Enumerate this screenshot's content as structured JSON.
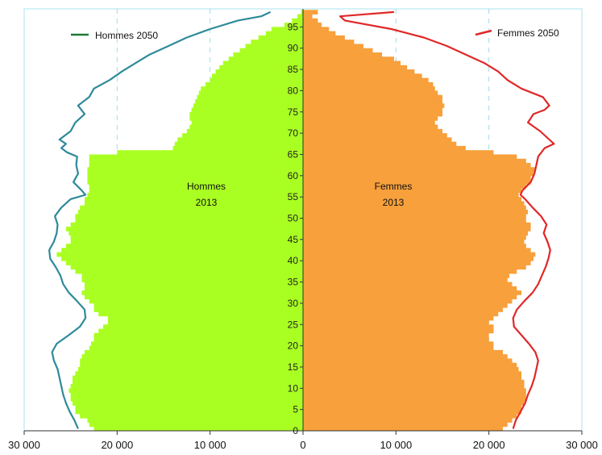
{
  "chart_data": {
    "type": "bar",
    "title": "",
    "orientation": "horizontal-pyramid",
    "xlabel": "",
    "ylabel": "",
    "xlim": [
      -30000,
      30000
    ],
    "ylim": [
      0,
      99
    ],
    "x_ticks": [
      {
        "value": -30000,
        "label": "30 000"
      },
      {
        "value": -20000,
        "label": "20 000"
      },
      {
        "value": -10000,
        "label": "10 000"
      },
      {
        "value": 0,
        "label": "0"
      },
      {
        "value": 10000,
        "label": "10 000"
      },
      {
        "value": 20000,
        "label": "20 000"
      },
      {
        "value": 30000,
        "label": "30 000"
      }
    ],
    "age_ticks": [
      "0",
      "5",
      "10",
      "15",
      "20",
      "25",
      "30",
      "35",
      "40",
      "45",
      "50",
      "55",
      "60",
      "65",
      "70",
      "75",
      "80",
      "85",
      "90",
      "95"
    ],
    "grid": true,
    "legend_position": "top",
    "colors": {
      "men_2013": "#AAFF22",
      "women_2013": "#F7A03C",
      "men_2050": "#2E8A9A",
      "women_2050": "#E02828",
      "men_2050_legend": "#1E7A3A",
      "grid": "#9FDCEA",
      "axis": "#333333",
      "frame": "#A8E4F0"
    },
    "series": [
      {
        "name": "Hommes 2013",
        "label_lines": [
          "Hommes",
          "2013"
        ],
        "side": "left",
        "kind": "bars",
        "color_key": "men_2013",
        "ages": [
          0,
          1,
          2,
          3,
          4,
          5,
          6,
          7,
          8,
          9,
          10,
          11,
          12,
          13,
          14,
          15,
          16,
          17,
          18,
          19,
          20,
          21,
          22,
          23,
          24,
          25,
          26,
          27,
          28,
          29,
          30,
          31,
          32,
          33,
          34,
          35,
          36,
          37,
          38,
          39,
          40,
          41,
          42,
          43,
          44,
          45,
          46,
          47,
          48,
          49,
          50,
          51,
          52,
          53,
          54,
          55,
          56,
          57,
          58,
          59,
          60,
          61,
          62,
          63,
          64,
          65,
          66,
          67,
          68,
          69,
          70,
          71,
          72,
          73,
          74,
          75,
          76,
          77,
          78,
          79,
          80,
          81,
          82,
          83,
          84,
          85,
          86,
          87,
          88,
          89,
          90,
          91,
          92,
          93,
          94,
          95,
          96,
          97,
          98
        ],
        "values": [
          22500,
          23000,
          23200,
          24000,
          24500,
          24500,
          24800,
          25000,
          25000,
          25200,
          25000,
          24800,
          24800,
          24500,
          24200,
          24000,
          24000,
          23800,
          23500,
          23000,
          22800,
          22500,
          22500,
          22000,
          21500,
          21000,
          21000,
          22000,
          22500,
          22500,
          23000,
          23500,
          23800,
          23500,
          23500,
          23800,
          23800,
          24500,
          25000,
          25500,
          26000,
          26500,
          26000,
          25500,
          25000,
          25000,
          25200,
          25500,
          25000,
          24500,
          24500,
          24200,
          24000,
          23500,
          23500,
          23200,
          23000,
          23000,
          23200,
          23200,
          23200,
          23200,
          23000,
          23000,
          23000,
          20000,
          14000,
          13800,
          13500,
          13000,
          12500,
          12200,
          12000,
          12200,
          12200,
          12000,
          11800,
          11600,
          11400,
          11200,
          11000,
          10500,
          10000,
          9800,
          9400,
          9000,
          8600,
          8000,
          7500,
          6800,
          6200,
          5600,
          4800,
          4000,
          3400,
          2000,
          1200,
          600,
          200
        ]
      },
      {
        "name": "Femmes 2013",
        "label_lines": [
          "Femmes",
          "2013"
        ],
        "side": "right",
        "kind": "bars",
        "color_key": "women_2013",
        "ages": [
          0,
          1,
          2,
          3,
          4,
          5,
          6,
          7,
          8,
          9,
          10,
          11,
          12,
          13,
          14,
          15,
          16,
          17,
          18,
          19,
          20,
          21,
          22,
          23,
          24,
          25,
          26,
          27,
          28,
          29,
          30,
          31,
          32,
          33,
          34,
          35,
          36,
          37,
          38,
          39,
          40,
          41,
          42,
          43,
          44,
          45,
          46,
          47,
          48,
          49,
          50,
          51,
          52,
          53,
          54,
          55,
          56,
          57,
          58,
          59,
          60,
          61,
          62,
          63,
          64,
          65,
          66,
          67,
          68,
          69,
          70,
          71,
          72,
          73,
          74,
          75,
          76,
          77,
          78,
          79,
          80,
          81,
          82,
          83,
          84,
          85,
          86,
          87,
          88,
          89,
          90,
          91,
          92,
          93,
          94,
          95,
          96,
          97,
          98
        ],
        "values": [
          21500,
          22000,
          22500,
          23000,
          23500,
          23500,
          23800,
          24000,
          24000,
          24000,
          23800,
          23800,
          23500,
          23500,
          23200,
          23000,
          22500,
          22000,
          21500,
          20500,
          20500,
          20000,
          20000,
          20500,
          20500,
          20000,
          20500,
          21000,
          21500,
          22000,
          22500,
          23000,
          23500,
          23000,
          22500,
          22000,
          22200,
          23000,
          24000,
          24500,
          24800,
          25000,
          24500,
          24000,
          23800,
          24000,
          24200,
          24500,
          24500,
          24000,
          24000,
          24200,
          24000,
          23800,
          23500,
          23200,
          23500,
          24000,
          24500,
          24500,
          24800,
          25000,
          24500,
          24000,
          23000,
          20500,
          17500,
          16500,
          16000,
          15500,
          15000,
          14500,
          14200,
          14500,
          15000,
          15000,
          15200,
          15000,
          15000,
          14500,
          14200,
          14000,
          13500,
          12800,
          12000,
          11200,
          10500,
          9800,
          8500,
          7500,
          6500,
          5500,
          4500,
          3500,
          2800,
          2000,
          1600,
          1000,
          1600
        ]
      },
      {
        "name": "Hommes 2050",
        "side": "left",
        "kind": "line",
        "color_key": "men_2050",
        "ages": [
          0,
          2,
          4,
          6,
          8,
          10,
          12,
          14,
          16,
          18,
          20,
          22,
          24,
          26,
          28,
          30,
          32,
          34,
          36,
          38,
          40,
          42,
          44,
          46,
          48,
          50,
          52,
          54,
          55,
          56,
          58,
          60,
          62,
          64,
          65,
          66,
          67,
          68,
          70,
          72,
          74,
          76,
          78,
          80,
          82,
          84,
          86,
          88,
          90,
          92,
          94,
          96,
          97,
          98
        ],
        "values": [
          24200,
          24600,
          25100,
          25500,
          25800,
          26000,
          26200,
          26400,
          26800,
          27000,
          26500,
          25200,
          24000,
          23400,
          23500,
          24300,
          25200,
          25800,
          26100,
          26600,
          27200,
          27300,
          26800,
          26500,
          26400,
          26700,
          26000,
          25000,
          23400,
          23800,
          24700,
          24200,
          24400,
          24300,
          25400,
          26000,
          25500,
          26200,
          25000,
          24500,
          23500,
          24200,
          23000,
          22500,
          20800,
          19500,
          18000,
          16500,
          14500,
          12500,
          10000,
          7000,
          4500,
          3500
        ]
      },
      {
        "name": "Femmes 2050",
        "side": "right",
        "kind": "line",
        "color_key": "women_2050",
        "ages": [
          0,
          2,
          4,
          6,
          8,
          10,
          12,
          14,
          16,
          18,
          20,
          22,
          24,
          26,
          28,
          30,
          32,
          34,
          36,
          38,
          40,
          42,
          44,
          46,
          48,
          50,
          52,
          54,
          55,
          56,
          58,
          60,
          62,
          64,
          66,
          67,
          68,
          70,
          72,
          74,
          75,
          76,
          78,
          80,
          82,
          84,
          86,
          88,
          90,
          92,
          94,
          96,
          97,
          98
        ],
        "values": [
          22600,
          22900,
          23400,
          23900,
          24200,
          24600,
          24900,
          25100,
          25300,
          25000,
          24300,
          23500,
          22700,
          22600,
          23000,
          23800,
          24700,
          25300,
          25700,
          26100,
          26400,
          26600,
          26300,
          25900,
          26200,
          25600,
          24700,
          23900,
          23400,
          23600,
          24500,
          24900,
          25100,
          25300,
          26000,
          27000,
          26500,
          25500,
          24200,
          24800,
          26000,
          26500,
          25800,
          23500,
          22000,
          21000,
          19500,
          17500,
          15500,
          13000,
          9500,
          4500,
          4000,
          9800
        ]
      }
    ]
  }
}
